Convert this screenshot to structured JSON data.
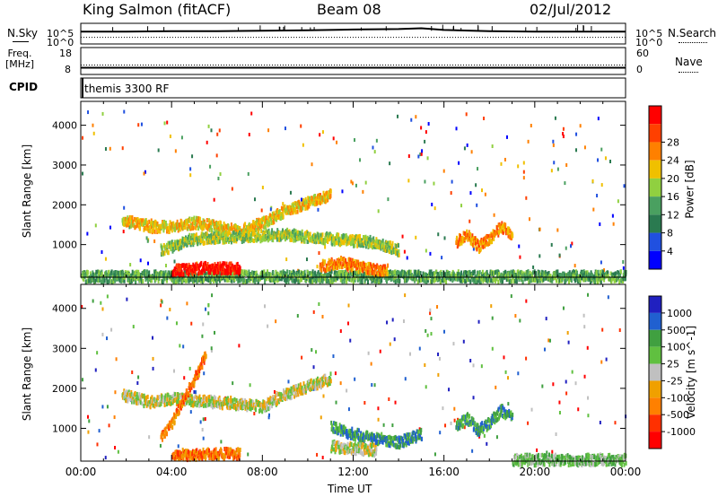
{
  "header": {
    "station": "King Salmon (fitACF)",
    "beam": "Beam 08",
    "date": "02/Jul/2012"
  },
  "colors": {
    "power_scale": [
      "#0000ff",
      "#2050e0",
      "#2a7a50",
      "#4aa060",
      "#90d040",
      "#f0c000",
      "#ff8000",
      "#ff4000",
      "#ff0000"
    ],
    "velocity_scale": [
      "#2020c0",
      "#2060d0",
      "#40a040",
      "#60c040",
      "#c0c0c0",
      "#f0a000",
      "#ff8000",
      "#ff3000",
      "#ff0000"
    ]
  },
  "chart_data": [
    {
      "type": "line",
      "panel": "N.Sky / N.Search",
      "left_label": "N.Sky",
      "right_label": "N.Search",
      "left_ticks": [
        "10^5",
        "10^0"
      ],
      "right_ticks": [
        "10^5",
        "10^0"
      ],
      "series": [
        {
          "name": "N.Sky",
          "style": "solid",
          "x": [
            0,
            2,
            4,
            6,
            8,
            10,
            12,
            14,
            15,
            16,
            18,
            20,
            22,
            24
          ],
          "y": [
            3.0,
            3.0,
            3.1,
            3.1,
            3.2,
            3.3,
            3.5,
            3.6,
            3.8,
            3.4,
            3.1,
            3.0,
            3.0,
            3.0
          ]
        },
        {
          "name": "N.Search",
          "style": "dotted",
          "x": [
            0,
            24
          ],
          "y": [
            1.6,
            1.6
          ]
        }
      ]
    },
    {
      "type": "line",
      "panel": "Freq. / Nave",
      "left_label": "Freq. [MHz]",
      "right_label": "Nave",
      "left_ticks": [
        "18",
        "8"
      ],
      "right_ticks": [
        "60",
        "0"
      ],
      "series": [
        {
          "name": "Freq.",
          "style": "solid",
          "x": [
            0,
            24
          ],
          "y": [
            10.5,
            10.5
          ]
        },
        {
          "name": "Nave",
          "style": "dotted",
          "x": [
            0,
            24
          ],
          "y": [
            11.5,
            11.5
          ]
        }
      ]
    },
    {
      "type": "table",
      "panel": "CPID",
      "label": "CPID",
      "entries": [
        {
          "x": 0,
          "text": "themis 3300 RF"
        }
      ]
    },
    {
      "type": "heatmap",
      "panel": "Power",
      "ylabel": "Slant Range [km]",
      "yticks": [
        1000,
        2000,
        3000,
        4000
      ],
      "ylim": [
        180,
        4600
      ],
      "xlim": [
        0,
        24
      ],
      "colorbar_label": "Power [dB]",
      "colorbar_ticks": [
        "4",
        "8",
        "12",
        "16",
        "20",
        "24",
        "28"
      ],
      "features": [
        {
          "name": "ground-scatter-band",
          "x": [
            0,
            24
          ],
          "y": [
            250,
            250
          ],
          "level": 3
        },
        {
          "name": "main-arc",
          "x": [
            1.8,
            3,
            4,
            5,
            6,
            7,
            8,
            9,
            10,
            11
          ],
          "y": [
            1700,
            1500,
            1500,
            1600,
            1500,
            1400,
            1600,
            1900,
            2100,
            2300
          ],
          "level": 5
        },
        {
          "name": "lower-arc",
          "x": [
            3.5,
            5,
            7,
            9,
            11,
            13,
            14
          ],
          "y": [
            900,
            1200,
            1250,
            1300,
            1200,
            1100,
            900
          ],
          "level": 4
        },
        {
          "name": "morning-patch",
          "x": [
            4.0,
            4.5,
            5.0,
            5.5,
            6.0,
            6.5,
            7.0
          ],
          "y": [
            400,
            420,
            450,
            480,
            460,
            450,
            440
          ],
          "level": 8
        },
        {
          "name": "midday-patch",
          "x": [
            10.5,
            11.5,
            12.5,
            13.5
          ],
          "y": [
            500,
            600,
            450,
            400
          ],
          "level": 6
        },
        {
          "name": "evening-streaks",
          "x": [
            16.5,
            17.0,
            17.5,
            18.0,
            18.5,
            19.0
          ],
          "y": [
            1100,
            1300,
            1000,
            1200,
            1500,
            1300
          ],
          "level": 6
        }
      ]
    },
    {
      "type": "heatmap",
      "panel": "Velocity",
      "ylabel": "Slant Range [km]",
      "xlabel": "Time UT",
      "yticks": [
        1000,
        2000,
        3000,
        4000
      ],
      "ylim": [
        180,
        4600
      ],
      "xlim": [
        0,
        24
      ],
      "xticks": [
        "00:00",
        "04:00",
        "08:00",
        "12:00",
        "16:00",
        "20:00",
        "00:00"
      ],
      "colorbar_label": "Velocity [m s^-1]",
      "colorbar_ticks": [
        "1000",
        "500",
        "100",
        "25",
        "-25",
        "-100",
        "-500",
        "-1000"
      ],
      "features": [
        {
          "name": "grey-ground-scatter-arc",
          "x": [
            1.8,
            3,
            4,
            6,
            8,
            9,
            10,
            11
          ],
          "y": [
            1900,
            1700,
            1800,
            1700,
            1600,
            1900,
            2100,
            2300
          ],
          "level": 4
        },
        {
          "name": "orange-dawn-cloud",
          "x": [
            3.5,
            4.0,
            4.5,
            5.0,
            5.5
          ],
          "y": [
            800,
            1200,
            1800,
            2300,
            2900
          ],
          "level": 6
        },
        {
          "name": "orange-low-band",
          "x": [
            4.0,
            5.0,
            6.0,
            7.0
          ],
          "y": [
            380,
            400,
            420,
            400
          ],
          "level": 6
        },
        {
          "name": "green-midday",
          "x": [
            11,
            12,
            13,
            14,
            15
          ],
          "y": [
            1100,
            900,
            800,
            700,
            900
          ],
          "level": 2
        },
        {
          "name": "grey-midday",
          "x": [
            11,
            12,
            13
          ],
          "y": [
            600,
            550,
            500
          ],
          "level": 4
        },
        {
          "name": "evening-mixed",
          "x": [
            16.5,
            17,
            17.5,
            18,
            18.5,
            19
          ],
          "y": [
            1100,
            1300,
            1000,
            1200,
            1500,
            1300
          ],
          "level": 2
        },
        {
          "name": "green-late",
          "x": [
            19,
            20,
            21,
            22,
            23,
            24
          ],
          "y": [
            260,
            260,
            270,
            260,
            270,
            260
          ],
          "level": 3
        }
      ]
    }
  ]
}
